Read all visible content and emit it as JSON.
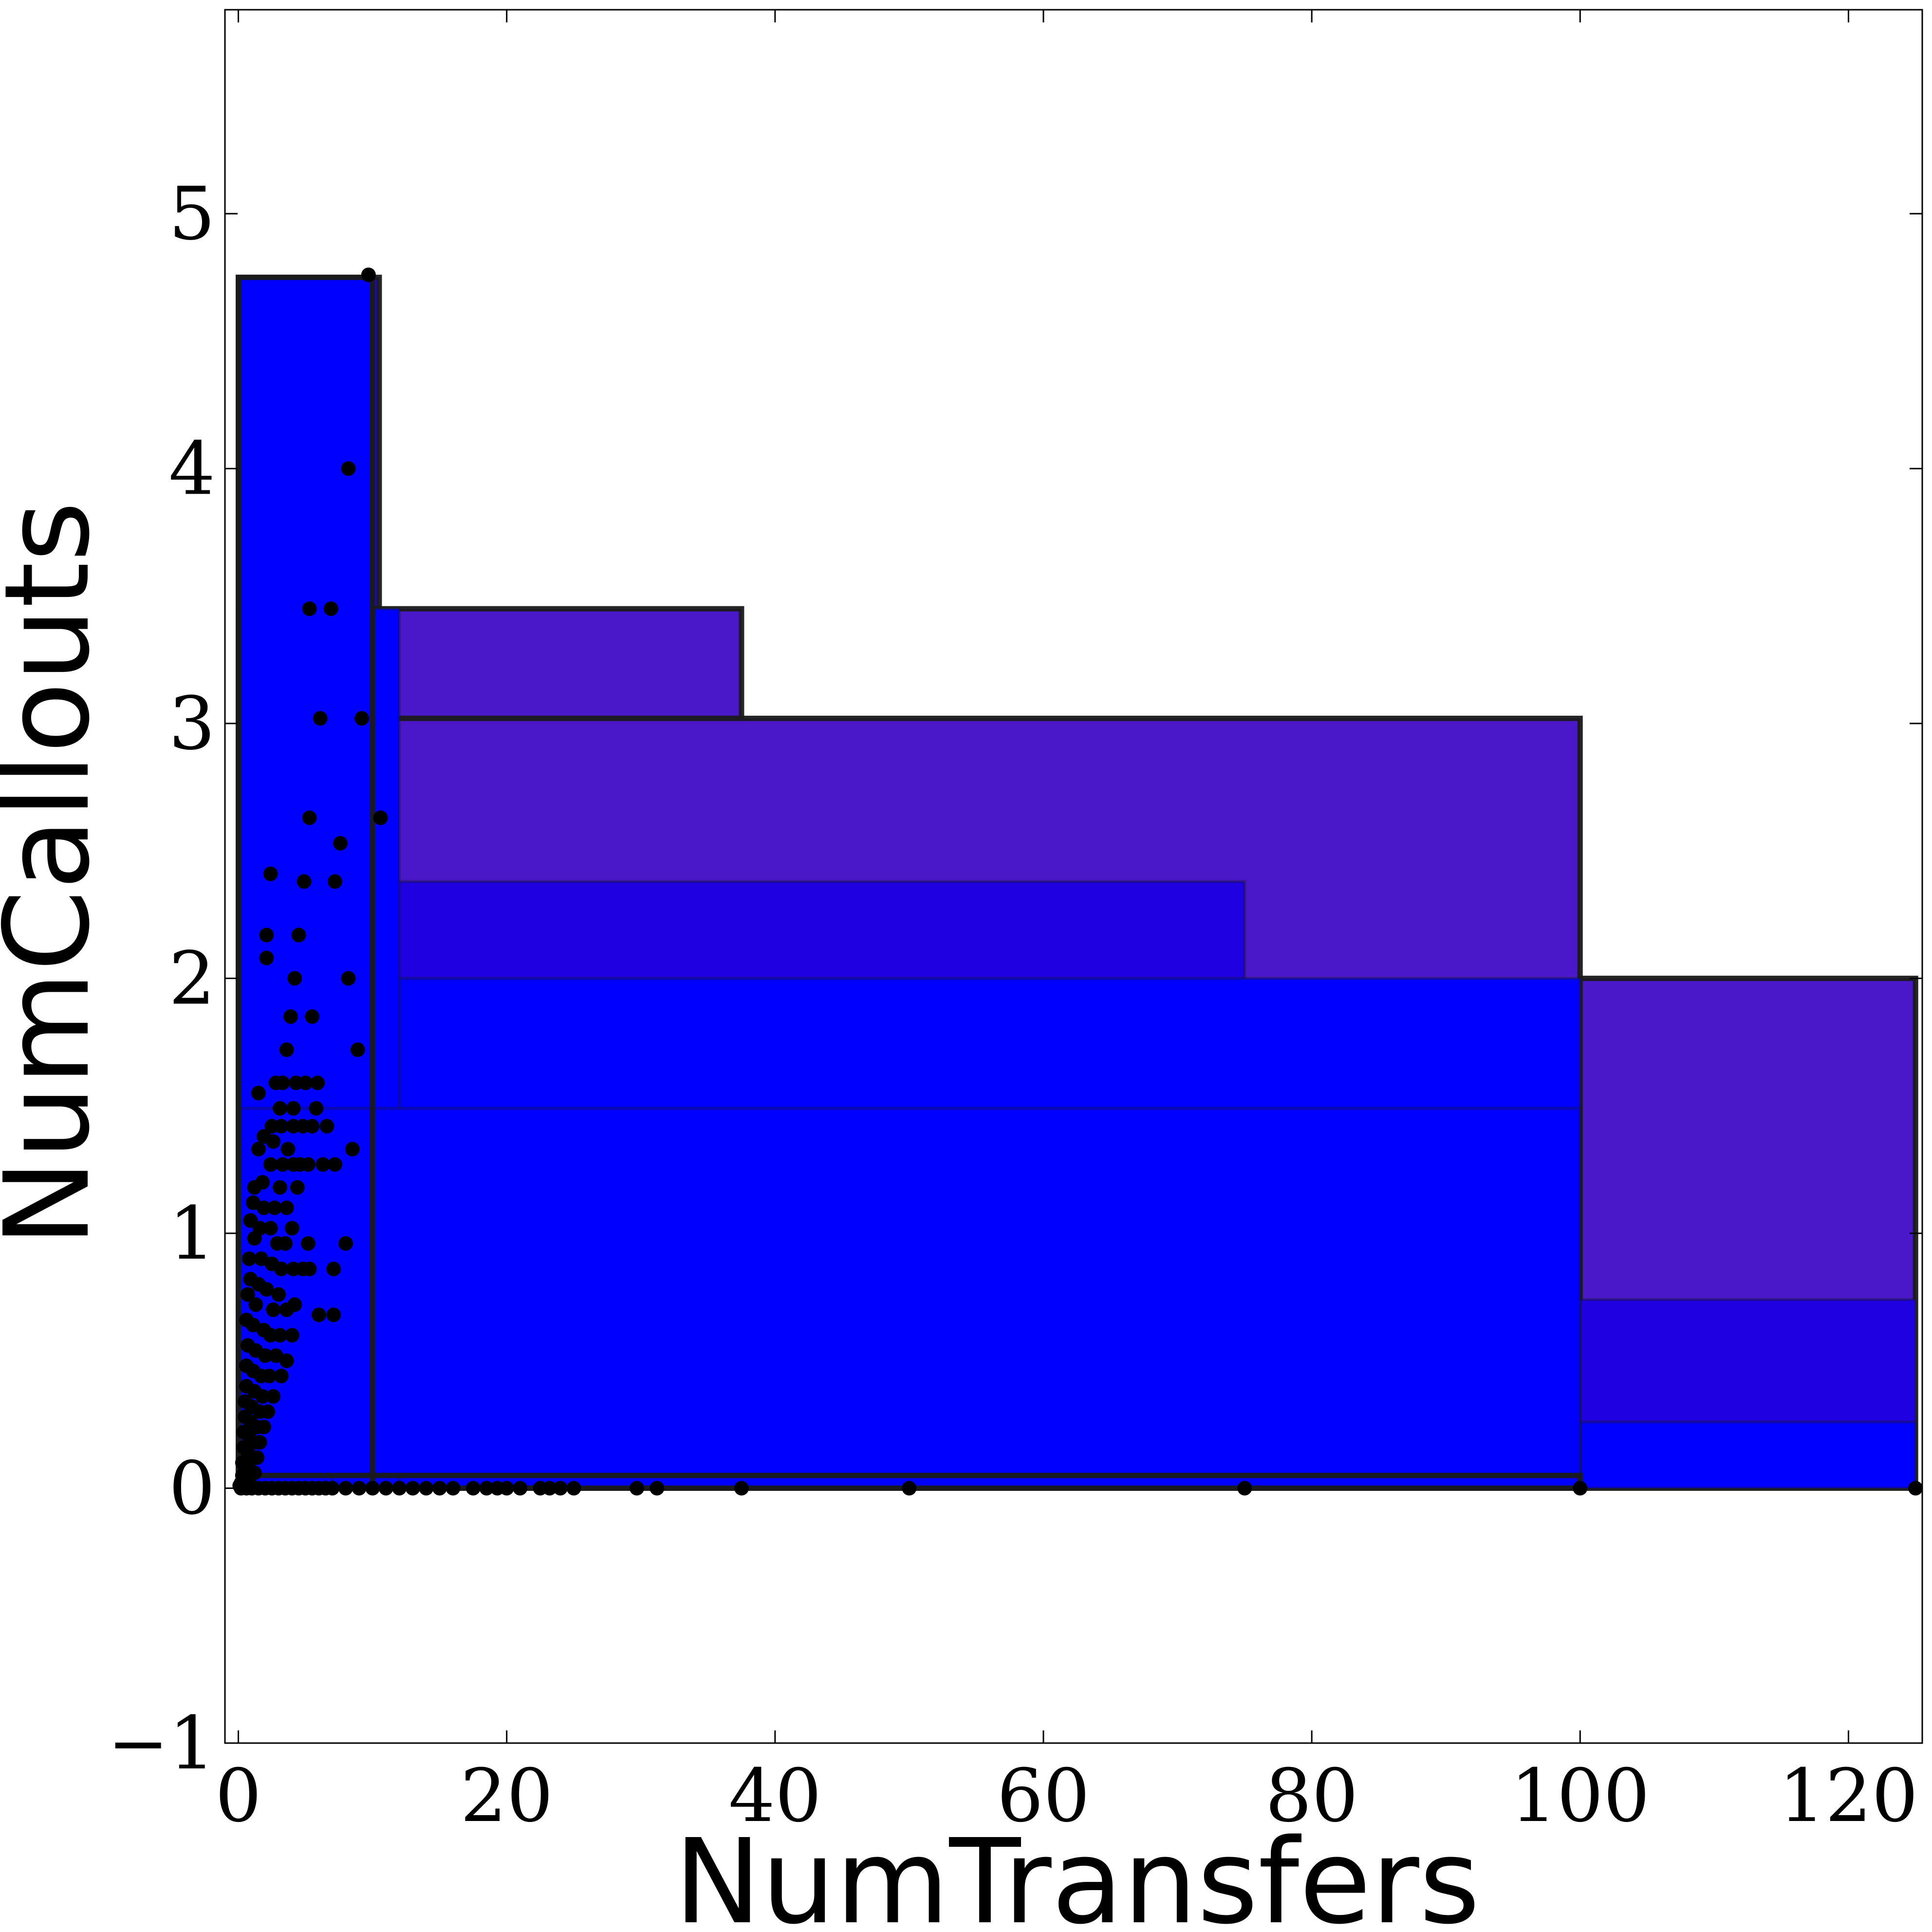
{
  "chart_data": {
    "type": "scatter",
    "title": "",
    "xlabel": "NumTransfers",
    "ylabel": "NumCallouts",
    "xlim": [
      -1,
      125.5
    ],
    "ylim": [
      -1,
      5.8
    ],
    "xticks": [
      0,
      20,
      40,
      60,
      80,
      100,
      120
    ],
    "xtick_labels": [
      "0",
      "20",
      "40",
      "60",
      "80",
      "100",
      "120"
    ],
    "yticks": [
      -1,
      0,
      1,
      2,
      3,
      4,
      5
    ],
    "ytick_labels": [
      "−1",
      "0",
      "1",
      "2",
      "3",
      "4",
      "5"
    ],
    "grid": false,
    "legend": "none",
    "colors": {
      "box_fill_purple": "#4a18c8",
      "box_fill_indigo": "#1f00e0",
      "box_fill_blue": "#0000ff",
      "box_edge": "#1a1a1a",
      "points": "#000000"
    },
    "boxes": [
      {
        "x0": 0,
        "x1": 10.5,
        "y0": 0,
        "y1": 4.75,
        "fill": "box_fill_indigo",
        "edge": "heavy"
      },
      {
        "x0": 0,
        "x1": 37.5,
        "y0": 0,
        "y1": 3.45,
        "fill": "box_fill_purple",
        "edge": "heavy"
      },
      {
        "x0": 0,
        "x1": 100,
        "y0": 0,
        "y1": 3.02,
        "fill": "box_fill_purple",
        "edge": "heavy"
      },
      {
        "x0": 100,
        "x1": 125,
        "y0": 0,
        "y1": 2.0,
        "fill": "box_fill_purple",
        "edge": "heavy"
      },
      {
        "x0": 100,
        "x1": 125,
        "y0": 0,
        "y1": 0.74,
        "fill": "box_fill_indigo",
        "edge": "light"
      },
      {
        "x0": 100,
        "x1": 125,
        "y0": 0,
        "y1": 0.26,
        "fill": "box_fill_blue",
        "edge": "light"
      },
      {
        "x0": 0,
        "x1": 75,
        "y0": 0,
        "y1": 2.38,
        "fill": "box_fill_indigo",
        "edge": "light"
      },
      {
        "x0": 0,
        "x1": 100,
        "y0": 0,
        "y1": 2.0,
        "fill": "box_fill_blue",
        "edge": "light"
      },
      {
        "x0": 0,
        "x1": 12,
        "y0": 0,
        "y1": 3.45,
        "fill": "box_fill_blue",
        "edge": "light"
      },
      {
        "x0": 0,
        "x1": 7,
        "y0": 0,
        "y1": 4.0,
        "fill": "box_fill_blue",
        "edge": "light"
      },
      {
        "x0": 0,
        "x1": 10,
        "y0": 0.32,
        "y1": 4.75,
        "fill": "box_fill_blue",
        "edge": "light"
      },
      {
        "x0": 0,
        "x1": 100,
        "y0": 0.05,
        "y1": 1.49,
        "fill": "box_fill_blue",
        "edge": "light"
      },
      {
        "x0": 0,
        "x1": 10,
        "y0": 0,
        "y1": 4.75,
        "fill": "none",
        "edge": "heavy"
      },
      {
        "x0": 0,
        "x1": 100,
        "y0": 0,
        "y1": 0.05,
        "fill": "none",
        "edge": "heavy"
      }
    ],
    "series": [
      {
        "points": [
          [
            9.7,
            4.76
          ],
          [
            8.2,
            4.0
          ],
          [
            5.3,
            3.45
          ],
          [
            6.9,
            3.45
          ],
          [
            6.1,
            3.02
          ],
          [
            9.2,
            3.02
          ],
          [
            5.3,
            2.63
          ],
          [
            10.6,
            2.63
          ],
          [
            7.6,
            2.53
          ],
          [
            2.4,
            2.41
          ],
          [
            4.9,
            2.38
          ],
          [
            7.2,
            2.38
          ],
          [
            2.1,
            2.17
          ],
          [
            4.5,
            2.17
          ],
          [
            2.1,
            2.08
          ],
          [
            4.2,
            2.0
          ],
          [
            8.2,
            2.0
          ],
          [
            3.9,
            1.85
          ],
          [
            5.5,
            1.85
          ],
          [
            3.6,
            1.72
          ],
          [
            8.9,
            1.72
          ],
          [
            1.5,
            1.55
          ],
          [
            2.8,
            1.59
          ],
          [
            3.3,
            1.59
          ],
          [
            4.3,
            1.59
          ],
          [
            5.0,
            1.59
          ],
          [
            5.9,
            1.59
          ],
          [
            3.1,
            1.49
          ],
          [
            4.1,
            1.49
          ],
          [
            5.8,
            1.49
          ],
          [
            2.5,
            1.42
          ],
          [
            3.2,
            1.42
          ],
          [
            4.1,
            1.42
          ],
          [
            4.8,
            1.42
          ],
          [
            5.5,
            1.42
          ],
          [
            6.6,
            1.42
          ],
          [
            1.9,
            1.38
          ],
          [
            2.6,
            1.36
          ],
          [
            3.7,
            1.33
          ],
          [
            1.5,
            1.33
          ],
          [
            8.5,
            1.33
          ],
          [
            2.4,
            1.27
          ],
          [
            3.3,
            1.27
          ],
          [
            4.1,
            1.27
          ],
          [
            4.6,
            1.27
          ],
          [
            5.2,
            1.27
          ],
          [
            6.3,
            1.27
          ],
          [
            7.2,
            1.27
          ],
          [
            1.2,
            1.18
          ],
          [
            1.8,
            1.2
          ],
          [
            3.1,
            1.18
          ],
          [
            4.4,
            1.18
          ],
          [
            1.1,
            1.12
          ],
          [
            1.9,
            1.1
          ],
          [
            2.7,
            1.1
          ],
          [
            3.6,
            1.1
          ],
          [
            0.9,
            1.05
          ],
          [
            1.6,
            1.02
          ],
          [
            2.4,
            1.02
          ],
          [
            4.0,
            1.02
          ],
          [
            1.2,
            0.98
          ],
          [
            2.9,
            0.96
          ],
          [
            3.5,
            0.96
          ],
          [
            5.2,
            0.96
          ],
          [
            8.0,
            0.96
          ],
          [
            0.8,
            0.9
          ],
          [
            1.7,
            0.9
          ],
          [
            2.5,
            0.88
          ],
          [
            3.2,
            0.86
          ],
          [
            4.1,
            0.86
          ],
          [
            5.3,
            0.86
          ],
          [
            4.8,
            0.86
          ],
          [
            7.1,
            0.86
          ],
          [
            0.9,
            0.82
          ],
          [
            1.5,
            0.8
          ],
          [
            2.1,
            0.78
          ],
          [
            3.0,
            0.76
          ],
          [
            0.7,
            0.76
          ],
          [
            1.3,
            0.72
          ],
          [
            2.6,
            0.7
          ],
          [
            4.2,
            0.72
          ],
          [
            3.6,
            0.7
          ],
          [
            6.0,
            0.68
          ],
          [
            7.1,
            0.68
          ],
          [
            0.6,
            0.66
          ],
          [
            1.1,
            0.64
          ],
          [
            1.9,
            0.62
          ],
          [
            2.4,
            0.6
          ],
          [
            3.1,
            0.6
          ],
          [
            4.0,
            0.6
          ],
          [
            0.7,
            0.56
          ],
          [
            1.3,
            0.54
          ],
          [
            2.0,
            0.52
          ],
          [
            2.8,
            0.52
          ],
          [
            3.6,
            0.5
          ],
          [
            0.6,
            0.48
          ],
          [
            1.1,
            0.46
          ],
          [
            1.7,
            0.44
          ],
          [
            2.3,
            0.44
          ],
          [
            3.2,
            0.44
          ],
          [
            0.6,
            0.4
          ],
          [
            1.2,
            0.38
          ],
          [
            1.8,
            0.36
          ],
          [
            2.6,
            0.36
          ],
          [
            0.5,
            0.34
          ],
          [
            1.0,
            0.32
          ],
          [
            1.6,
            0.3
          ],
          [
            2.2,
            0.3
          ],
          [
            0.5,
            0.28
          ],
          [
            0.9,
            0.26
          ],
          [
            1.4,
            0.24
          ],
          [
            1.9,
            0.24
          ],
          [
            0.4,
            0.22
          ],
          [
            0.8,
            0.2
          ],
          [
            1.2,
            0.18
          ],
          [
            1.6,
            0.18
          ],
          [
            0.4,
            0.16
          ],
          [
            0.7,
            0.14
          ],
          [
            1.1,
            0.12
          ],
          [
            1.4,
            0.12
          ],
          [
            0.3,
            0.1
          ],
          [
            0.6,
            0.09
          ],
          [
            0.9,
            0.07
          ],
          [
            1.2,
            0.06
          ],
          [
            0.3,
            0.05
          ],
          [
            0.5,
            0.04
          ],
          [
            0.8,
            0.03
          ],
          [
            0.2,
            0.02
          ],
          [
            0.4,
            0.015
          ],
          [
            0.1,
            0.01
          ],
          [
            0.2,
            0.0
          ],
          [
            0.6,
            0.0
          ],
          [
            1.0,
            0.0
          ],
          [
            1.5,
            0.0
          ],
          [
            2.0,
            0.0
          ],
          [
            2.5,
            0.0
          ],
          [
            3.0,
            0.0
          ],
          [
            3.5,
            0.0
          ],
          [
            4.0,
            0.0
          ],
          [
            4.5,
            0.0
          ],
          [
            5.0,
            0.0
          ],
          [
            5.5,
            0.0
          ],
          [
            6.0,
            0.0
          ],
          [
            6.5,
            0.0
          ],
          [
            7.0,
            0.0
          ],
          [
            8.0,
            0.0
          ],
          [
            9.0,
            0.0
          ],
          [
            10.0,
            0.0
          ],
          [
            11.0,
            0.0
          ],
          [
            12.0,
            0.0
          ],
          [
            13.0,
            0.0
          ],
          [
            14.0,
            0.0
          ],
          [
            15.0,
            0.0
          ],
          [
            16.0,
            0.0
          ],
          [
            17.5,
            0.0
          ],
          [
            18.5,
            0.0
          ],
          [
            19.3,
            0.0
          ],
          [
            20.0,
            0.0
          ],
          [
            21.0,
            0.0
          ],
          [
            22.5,
            0.0
          ],
          [
            23.2,
            0.0
          ],
          [
            24.0,
            0.0
          ],
          [
            25.0,
            0.0
          ],
          [
            29.7,
            0.0
          ],
          [
            31.2,
            0.0
          ],
          [
            37.5,
            0.0
          ],
          [
            50.0,
            0.0
          ],
          [
            75.0,
            0.0
          ],
          [
            100.0,
            0.0
          ],
          [
            125.0,
            0.0
          ]
        ]
      }
    ]
  }
}
